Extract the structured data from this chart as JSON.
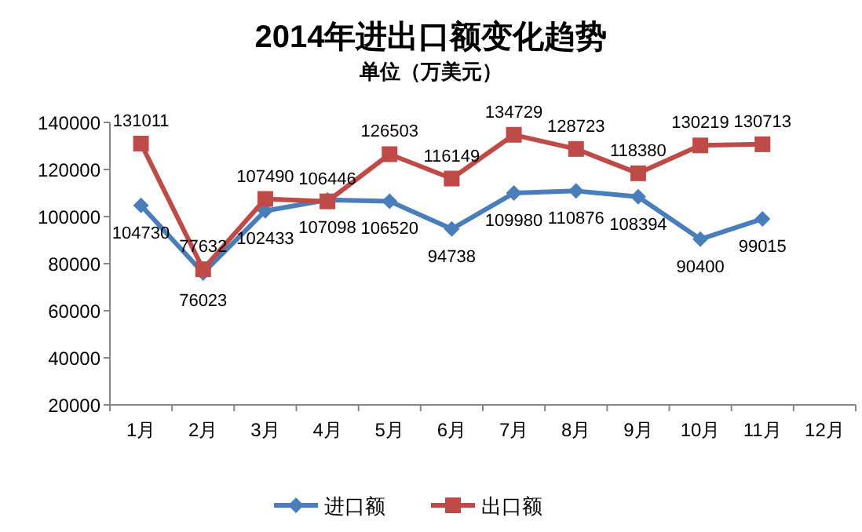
{
  "chart_data": {
    "type": "line",
    "title": "2014年进出口额变化趋势",
    "subtitle": "单位（万美元）",
    "categories": [
      "1月",
      "2月",
      "3月",
      "4月",
      "5月",
      "6月",
      "7月",
      "8月",
      "9月",
      "10月",
      "11月",
      "12月"
    ],
    "series": [
      {
        "name": "进口额",
        "color": "#4a7ebb",
        "marker": "diamond",
        "values": [
          104730,
          76023,
          102433,
          107098,
          106520,
          94738,
          109980,
          110876,
          108394,
          90400,
          99015,
          null
        ]
      },
      {
        "name": "出口额",
        "color": "#be4b48",
        "marker": "square",
        "values": [
          131011,
          77632,
          107490,
          106446,
          126503,
          116149,
          134729,
          128723,
          118380,
          130219,
          130713,
          null
        ]
      }
    ],
    "ylim": [
      20000,
      140000
    ],
    "yticks": [
      20000,
      40000,
      60000,
      80000,
      100000,
      120000,
      140000
    ],
    "data_labels": true,
    "legend": "bottom",
    "grid": false,
    "line_style": "solid"
  }
}
